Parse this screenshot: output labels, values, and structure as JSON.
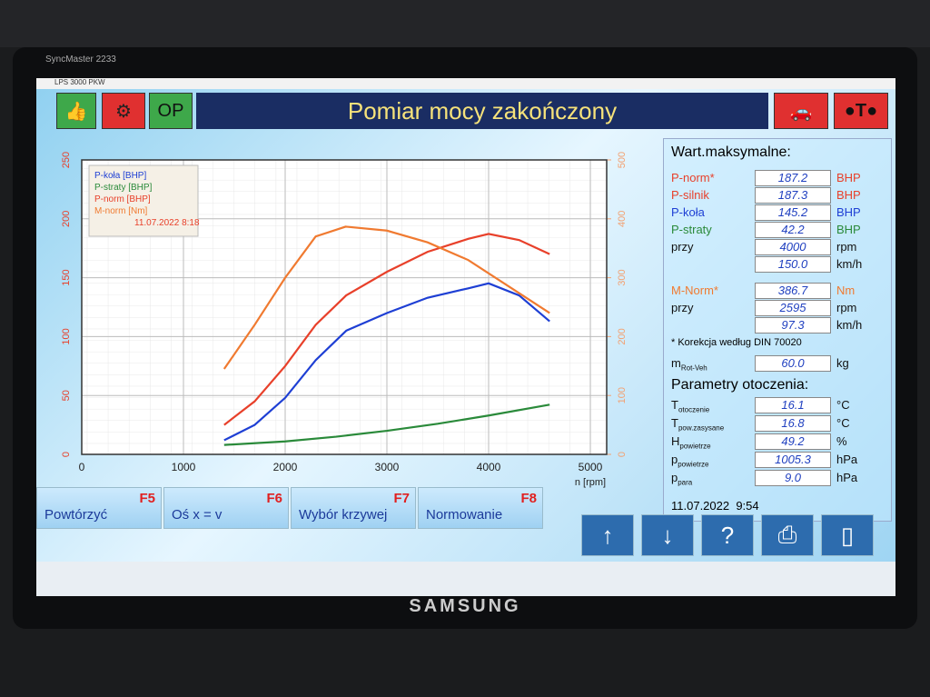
{
  "monitor": {
    "model": "SyncMaster 2233",
    "brand": "SAMSUNG"
  },
  "window": {
    "title": "LPS 3000 PKW"
  },
  "header": {
    "button": "OP",
    "title": "Pomiar mocy zakończony"
  },
  "chart_data": {
    "type": "line",
    "xlabel": "n [rpm]",
    "xlim": [
      0,
      5000
    ],
    "xticks": [
      0,
      1000,
      2000,
      3000,
      4000,
      5000
    ],
    "ylim": [
      0,
      250
    ],
    "yticks": [
      0,
      50,
      100,
      150,
      200,
      250
    ],
    "y2lim": [
      0,
      500
    ],
    "y2ticks": [
      0,
      100,
      200,
      300,
      400,
      500
    ],
    "grid": true,
    "legend_date": "11.07.2022 8:18",
    "series": [
      {
        "name": "P-koła [BHP]",
        "color": "#1e3fd4",
        "x": [
          1400,
          1700,
          2000,
          2300,
          2600,
          3000,
          3400,
          3800,
          4000,
          4300,
          4600
        ],
        "values": [
          12,
          25,
          48,
          80,
          105,
          120,
          133,
          141,
          145.2,
          135,
          113
        ]
      },
      {
        "name": "P-straty [BHP]",
        "color": "#2a8a3a",
        "x": [
          1400,
          2000,
          2500,
          3000,
          3500,
          4000,
          4600
        ],
        "values": [
          8,
          11,
          15,
          20,
          26,
          33,
          42.2
        ]
      },
      {
        "name": "P-norm [BHP]",
        "color": "#e8402a",
        "x": [
          1400,
          1700,
          2000,
          2300,
          2600,
          3000,
          3400,
          3800,
          4000,
          4300,
          4600
        ],
        "values": [
          25,
          45,
          75,
          110,
          135,
          155,
          172,
          183,
          187.2,
          182,
          170
        ]
      },
      {
        "name": "M-norm [Nm]",
        "color": "#f07a30",
        "axis": "y2",
        "x": [
          1400,
          1700,
          2000,
          2300,
          2595,
          3000,
          3400,
          3800,
          4200,
          4600
        ],
        "values": [
          145,
          220,
          300,
          370,
          386.7,
          380,
          360,
          330,
          285,
          240
        ]
      }
    ]
  },
  "panel": {
    "title": "Wart.maksymalne:",
    "rows": [
      {
        "label": "P-norm*",
        "value": "187.2",
        "unit": "BHP",
        "color": "#e8402a"
      },
      {
        "label": "P-silnik",
        "value": "187.3",
        "unit": "BHP",
        "color": "#e8402a"
      },
      {
        "label": "P-koła",
        "value": "145.2",
        "unit": "BHP",
        "color": "#1e3fd4"
      },
      {
        "label": "P-straty",
        "value": "42.2",
        "unit": "BHP",
        "color": "#2a8a3a"
      },
      {
        "label": "przy",
        "value": "4000",
        "unit": "rpm",
        "color": "#111111"
      },
      {
        "value": "150.0",
        "unit": "km/h",
        "color": "#111111"
      },
      {
        "label": "M-Norm*",
        "value": "386.7",
        "unit": "Nm",
        "color": "#f07a30"
      },
      {
        "label": "przy",
        "value": "2595",
        "unit": "rpm",
        "color": "#111111"
      },
      {
        "value": "97.3",
        "unit": "km/h",
        "color": "#111111"
      }
    ],
    "note": "* Korekcja według DIN 70020",
    "mass": {
      "label": "m",
      "sub": "Rot-Veh",
      "value": "60.0",
      "unit": "kg"
    },
    "env_title": "Parametry otoczenia:",
    "env": [
      {
        "label": "T",
        "sub": "otoczenie",
        "value": "16.1",
        "unit": "°C"
      },
      {
        "label": "T",
        "sub": "pow.zasysane",
        "value": "16.8",
        "unit": "°C"
      },
      {
        "label": "H",
        "sub": "powietrze",
        "value": "49.2",
        "unit": "%"
      },
      {
        "label": "p",
        "sub": "powietrze",
        "value": "1005.3",
        "unit": "hPa"
      },
      {
        "label": "p",
        "sub": "para",
        "value": "9.0",
        "unit": "hPa"
      }
    ],
    "date": "11.07.2022  9:54"
  },
  "keys": [
    {
      "label": "Powtórzyć",
      "key": "F5"
    },
    {
      "label": "Oś x = v",
      "key": "F6"
    },
    {
      "label": "Wybór krzywej",
      "key": "F7"
    },
    {
      "label": "Normowanie",
      "key": "F8"
    }
  ]
}
